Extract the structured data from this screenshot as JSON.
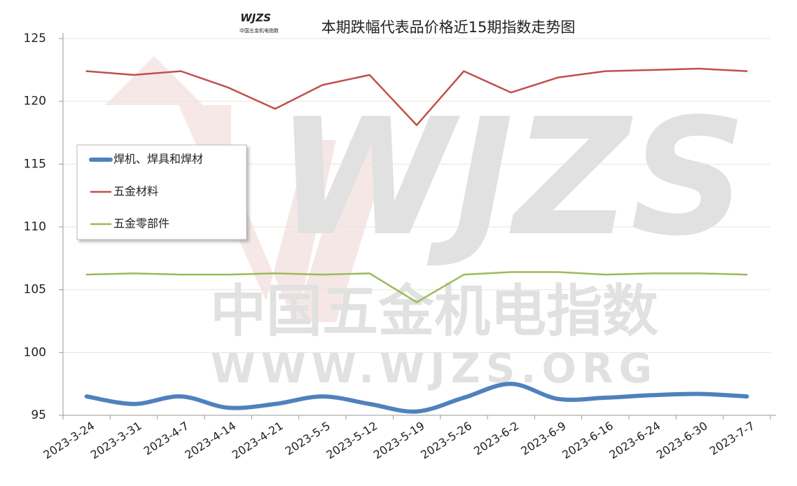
{
  "chart_data": {
    "type": "line",
    "title": "本期跌幅代表品价格近15期指数走势图",
    "logo": "WJZS",
    "watermark": [
      "中国五金机电指数",
      "WWW.WJZS.ORG"
    ],
    "categories": [
      "2023-3-24",
      "2023-3-31",
      "2023-4-7",
      "2023-4-14",
      "2023-4-21",
      "2023-5-5",
      "2023-5-12",
      "2023-5-19",
      "2023-5-26",
      "2023-6-2",
      "2023-6-9",
      "2023-6-16",
      "2023-6-24",
      "2023-6-30",
      "2023-7-7"
    ],
    "series": [
      {
        "name": "焊机、焊具和焊材",
        "color": "#4f81bd",
        "smooth": true,
        "values": [
          96.5,
          95.9,
          96.5,
          95.6,
          95.9,
          96.5,
          95.9,
          95.3,
          96.4,
          97.5,
          96.3,
          96.4,
          96.6,
          96.7,
          96.5
        ]
      },
      {
        "name": "五金材料",
        "color": "#c0504d",
        "smooth": false,
        "values": [
          122.4,
          122.1,
          122.4,
          121.1,
          119.4,
          121.3,
          122.1,
          118.1,
          122.4,
          120.7,
          121.9,
          122.4,
          122.5,
          122.6,
          122.4
        ]
      },
      {
        "name": "五金零部件",
        "color": "#9bbb59",
        "smooth": false,
        "values": [
          106.2,
          106.3,
          106.2,
          106.2,
          106.3,
          106.2,
          106.3,
          104.0,
          106.2,
          106.4,
          106.4,
          106.2,
          106.3,
          106.3,
          106.2
        ]
      }
    ],
    "ylim": [
      95,
      125
    ],
    "yticks": [
      95,
      100,
      105,
      110,
      115,
      120,
      125
    ],
    "grid": true,
    "legend": "left"
  }
}
